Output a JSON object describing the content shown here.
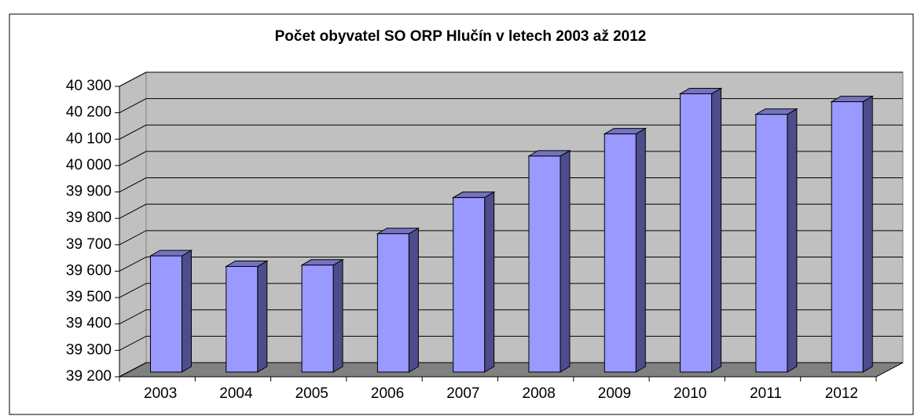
{
  "chart_data": {
    "type": "bar3d",
    "title": "Počet obyvatel SO ORP Hlučín v letech 2003 až 2012",
    "categories": [
      "2003",
      "2004",
      "2005",
      "2006",
      "2007",
      "2008",
      "2009",
      "2010",
      "2011",
      "2012"
    ],
    "values": [
      39640,
      39600,
      39605,
      39724,
      39861,
      40018,
      40102,
      40254,
      40176,
      40224
    ],
    "color": "#9999ff",
    "ylim": [
      39200,
      40300
    ],
    "yticks": [
      {
        "value": 39200,
        "label": "39 200"
      },
      {
        "value": 39300,
        "label": "39 300"
      },
      {
        "value": 39400,
        "label": "39 400"
      },
      {
        "value": 39500,
        "label": "39 500"
      },
      {
        "value": 39600,
        "label": "39 600"
      },
      {
        "value": 39700,
        "label": "39 700"
      },
      {
        "value": 39800,
        "label": "39 800"
      },
      {
        "value": 39900,
        "label": "39 900"
      },
      {
        "value": 40000,
        "label": "40 000"
      },
      {
        "value": 40100,
        "label": "40 100"
      },
      {
        "value": 40200,
        "label": "40 200"
      },
      {
        "value": 40300,
        "label": "40 300"
      }
    ],
    "grid": true
  }
}
